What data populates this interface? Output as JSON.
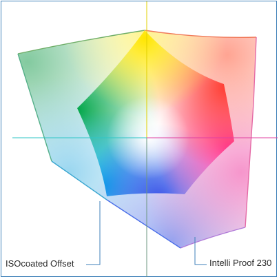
{
  "labels": {
    "outer_gamut": "Intelli Proof 230",
    "inner_gamut": "ISOcoated Offset"
  },
  "colors": {
    "frame": "#3d7fb8",
    "axis_vertical": "#e0d000",
    "axis_horizontal_left": "#2ec6c6",
    "axis_horizontal_right": "#e040a0",
    "leader_line": "#3d7fb8",
    "yellow": "#ffe600",
    "red": "#ff3a2e",
    "magenta": "#ff2aa0",
    "blue": "#2a4cff",
    "cyan": "#00b0e8",
    "green": "#00a64a",
    "white_point": "#ffffff"
  }
}
